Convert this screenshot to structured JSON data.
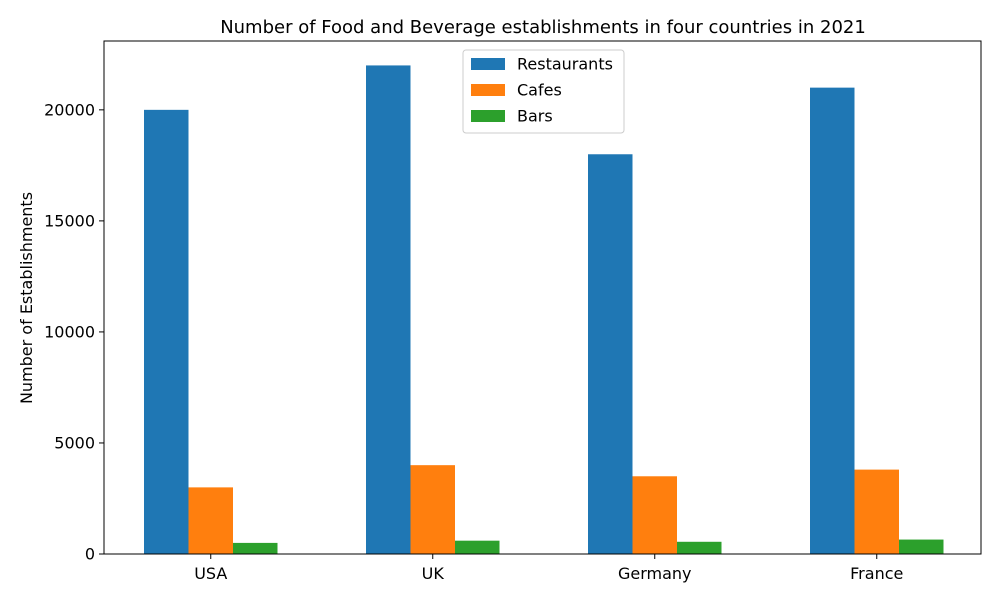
{
  "chart_data": {
    "type": "bar",
    "title": "Number of Food and Beverage establishments in four countries in 2021",
    "xlabel": "",
    "ylabel": "Number of Establishments",
    "categories": [
      "USA",
      "UK",
      "Germany",
      "France"
    ],
    "series": [
      {
        "name": "Restaurants",
        "values": [
          20000,
          22000,
          18000,
          21000
        ],
        "color": "#1f77b4"
      },
      {
        "name": "Cafes",
        "values": [
          3000,
          4000,
          3500,
          3800
        ],
        "color": "#ff7f0e"
      },
      {
        "name": "Bars",
        "values": [
          500,
          600,
          550,
          650
        ],
        "color": "#2ca02c"
      }
    ],
    "ylim": [
      0,
      23100
    ],
    "yticks": [
      0,
      5000,
      10000,
      15000,
      20000
    ],
    "grid": false,
    "legend_position": "top-center"
  }
}
